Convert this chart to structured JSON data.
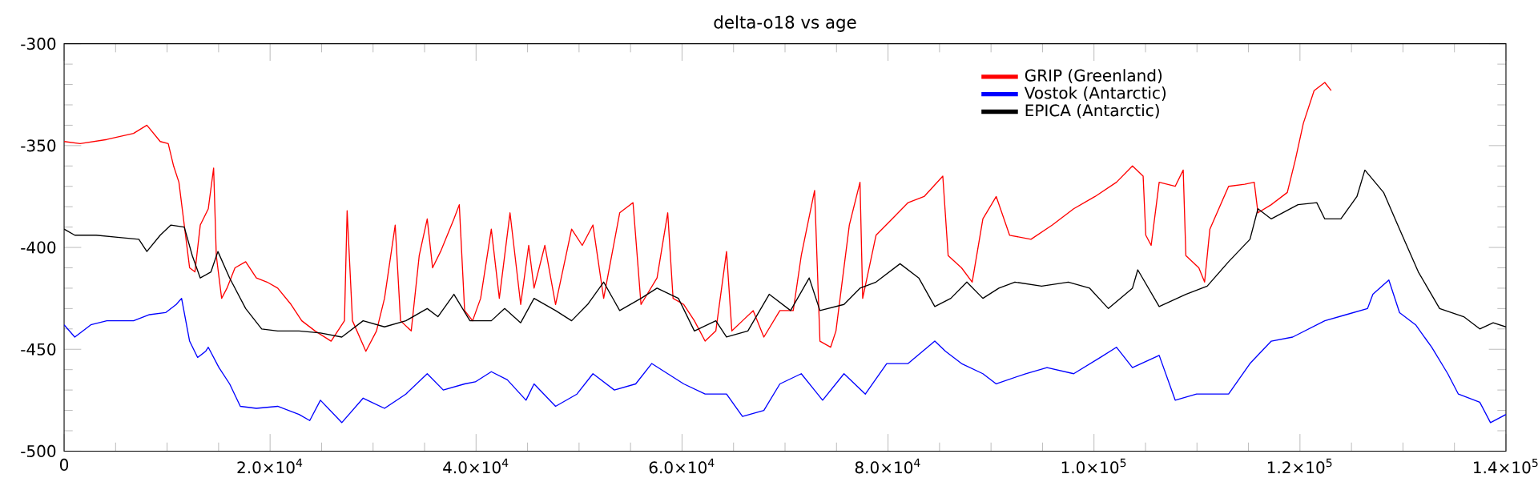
{
  "chart_data": {
    "type": "line",
    "title": "delta-o18 vs age",
    "xlim": [
      0,
      140000
    ],
    "ylim": [
      -500,
      -300
    ],
    "xticks": [
      0,
      {
        "value": 20000,
        "label": "2.0×10$^{4}$"
      },
      {
        "value": 40000,
        "label": "4.0×10$^{4}$"
      },
      {
        "value": 60000,
        "label": "6.0×10$^{4}$"
      },
      {
        "value": 80000,
        "label": "8.0×10$^{4}$"
      },
      {
        "value": 100000,
        "label": "1.0×10$^{5}$"
      },
      {
        "value": 120000,
        "label": "1.2×10$^{5}$"
      },
      {
        "value": 140000,
        "label": "1.4×10$^{5}$"
      }
    ],
    "yticks": [
      -300,
      -350,
      -400,
      -450,
      -500
    ],
    "legend": "top right",
    "grid": false,
    "marker": "none",
    "line_style": "solid",
    "series": [
      {
        "name": "GRIP (Greenland)",
        "color": "#ff0000",
        "x": [
          0,
          1556,
          4148,
          6740,
          8036,
          9333,
          10110,
          10630,
          11148,
          11667,
          12185,
          12704,
          13222,
          14000,
          14518,
          14777,
          15296,
          15814,
          16592,
          17629,
          18666,
          19703,
          20740,
          22036,
          23073,
          24370,
          25925,
          27221,
          27480,
          28000,
          29300,
          30333,
          31110,
          32148,
          32666,
          33703,
          34481,
          35259,
          35777,
          36555,
          37850,
          38370,
          38888,
          39666,
          40444,
          41481,
          42259,
          43296,
          44333,
          45111,
          45630,
          46680,
          47720,
          49276,
          50310,
          51350,
          52390,
          53946,
          55240,
          56016,
          57572,
          58610,
          59128,
          60165,
          61200,
          62240,
          63280,
          64320,
          64836,
          65870,
          66908,
          67945,
          69500,
          70798,
          71576,
          72870,
          73390,
          74426,
          74945,
          76244,
          77280,
          77540,
          78836,
          80393,
          81950,
          83506,
          85320,
          85840,
          87136,
          88173,
          89210,
          90507,
          91804,
          93880,
          95956,
          98028,
          100100,
          102180,
          103735,
          104772,
          105030,
          105550,
          106330,
          107885,
          108663,
          108920,
          110180,
          110740,
          111253,
          113070,
          114630,
          115560,
          115920,
          117215,
          118770,
          119550,
          120330,
          121370,
          122410,
          123030
        ],
        "values": [
          -348,
          -349,
          -347,
          -344,
          -340,
          -348,
          -349,
          -360,
          -368,
          -389,
          -410,
          -412,
          -389,
          -381,
          -361,
          -404,
          -425,
          -420,
          -410,
          -407,
          -415,
          -417,
          -420,
          -428,
          -436,
          -441,
          -446,
          -436,
          -382,
          -436,
          -451,
          -441,
          -425,
          -389,
          -436,
          -441,
          -404,
          -386,
          -410,
          -402,
          -386,
          -379,
          -431,
          -436,
          -425,
          -391,
          -425,
          -383,
          -428,
          -399,
          -420,
          -399,
          -428,
          -391,
          -399,
          -389,
          -425,
          -383,
          -378,
          -428,
          -415,
          -383,
          -425,
          -428,
          -436,
          -446,
          -441,
          -402,
          -441,
          -436,
          -431,
          -444,
          -431,
          -431,
          -404,
          -372,
          -446,
          -449,
          -441,
          -389,
          -368,
          -425,
          -394,
          -386,
          -378,
          -375,
          -365,
          -404,
          -410,
          -417,
          -386,
          -375,
          -394,
          -396,
          -389,
          -381,
          -375,
          -368,
          -360,
          -365,
          -394,
          -399,
          -368,
          -370,
          -362,
          -404,
          -410,
          -417,
          -391,
          -370,
          -369,
          -368,
          -383,
          -379,
          -373,
          -357,
          -339,
          -323,
          -319,
          -323
        ]
      },
      {
        "name": "Vostok (Antarctic)",
        "color": "#0000ff",
        "x": [
          0,
          1037,
          2592,
          4148,
          6740,
          8296,
          9851,
          10888,
          11407,
          12185,
          12963,
          13740,
          14000,
          15037,
          16073,
          17110,
          18666,
          20740,
          22814,
          23851,
          24888,
          26962,
          29036,
          31110,
          33184,
          35259,
          36814,
          38888,
          39925,
          41481,
          43037,
          44851,
          45630,
          47720,
          49795,
          51350,
          53430,
          55500,
          57053,
          58610,
          60165,
          62240,
          64320,
          65870,
          67945,
          69500,
          71576,
          73650,
          75725,
          77800,
          79875,
          81950,
          84543,
          85580,
          87136,
          89210,
          90507,
          93360,
          95437,
          98028,
          100620,
          102180,
          103735,
          106330,
          107885,
          109960,
          113070,
          115145,
          117215,
          119290,
          122410,
          124485,
          126560,
          127080,
          128630,
          129670,
          131230,
          132790,
          134350,
          135380,
          137460,
          138500,
          140000
        ],
        "values": [
          -438,
          -444,
          -438,
          -436,
          -436,
          -433,
          -432,
          -428,
          -425,
          -446,
          -454,
          -451,
          -449,
          -459,
          -467,
          -478,
          -479,
          -478,
          -482,
          -485,
          -475,
          -486,
          -474,
          -479,
          -472,
          -462,
          -470,
          -467,
          -466,
          -461,
          -465,
          -475,
          -467,
          -478,
          -472,
          -462,
          -470,
          -467,
          -457,
          -462,
          -467,
          -472,
          -472,
          -483,
          -480,
          -467,
          -462,
          -475,
          -462,
          -472,
          -457,
          -457,
          -446,
          -451,
          -457,
          -462,
          -467,
          -462,
          -459,
          -462,
          -454,
          -449,
          -459,
          -453,
          -475,
          -472,
          -472,
          -457,
          -446,
          -444,
          -436,
          -433,
          -430,
          -423,
          -416,
          -432,
          -438,
          -449,
          -462,
          -472,
          -476,
          -486,
          -482
        ]
      },
      {
        "name": "EPICA (Antarctic)",
        "color": "#000000",
        "x": [
          0,
          1037,
          3111,
          5185,
          7259,
          8036,
          9333,
          10370,
          11667,
          12444,
          13222,
          14259,
          14932,
          16073,
          17629,
          19185,
          20740,
          22814,
          24888,
          26962,
          29036,
          31110,
          33184,
          35259,
          36296,
          37851,
          39407,
          41481,
          42777,
          44333,
          45630,
          47720,
          49276,
          50830,
          52390,
          53946,
          56016,
          57572,
          59646,
          61200,
          63280,
          64320,
          66390,
          68464,
          70540,
          72350,
          73390,
          75725,
          77280,
          78836,
          81170,
          82987,
          84543,
          86100,
          87655,
          89210,
          90766,
          92320,
          94915,
          97510,
          99580,
          101400,
          103735,
          104250,
          106330,
          108920,
          110990,
          113070,
          115145,
          115920,
          117215,
          119810,
          121630,
          122410,
          123970,
          125530,
          126300,
          128120,
          129670,
          131490,
          133560,
          135900,
          137460,
          138760,
          140000
        ],
        "values": [
          -391,
          -394,
          -394,
          -395,
          -396,
          -402,
          -394,
          -389,
          -390,
          -404,
          -415,
          -412,
          -402,
          -415,
          -430,
          -440,
          -441,
          -441,
          -442,
          -444,
          -436,
          -439,
          -436,
          -430,
          -434,
          -423,
          -436,
          -436,
          -430,
          -437,
          -425,
          -431,
          -436,
          -428,
          -417,
          -431,
          -425,
          -420,
          -425,
          -441,
          -436,
          -444,
          -441,
          -423,
          -431,
          -415,
          -431,
          -428,
          -420,
          -417,
          -408,
          -415,
          -429,
          -425,
          -417,
          -425,
          -420,
          -417,
          -419,
          -417,
          -420,
          -430,
          -420,
          -411,
          -429,
          -423,
          -419,
          -407,
          -396,
          -381,
          -386,
          -379,
          -378,
          -386,
          -386,
          -375,
          -362,
          -373,
          -391,
          -412,
          -430,
          -434,
          -440,
          -437,
          -439
        ]
      }
    ]
  }
}
